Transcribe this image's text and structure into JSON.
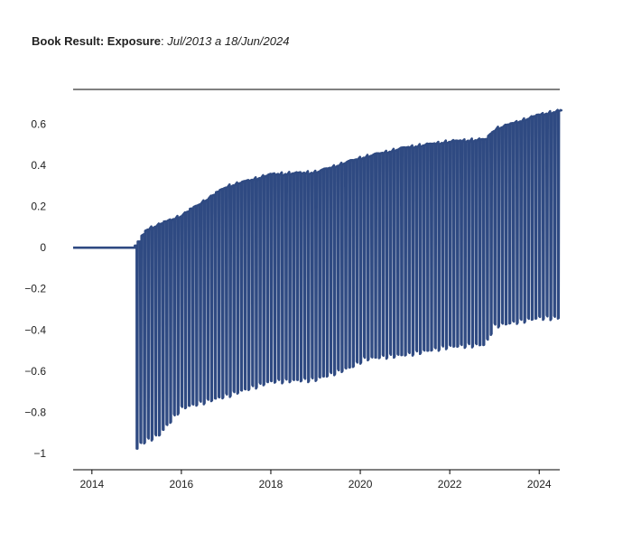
{
  "title": {
    "bold": "Book Result: Exposure",
    "sep": ": ",
    "italic": "Jul/2013 a 18/Jun/2024"
  },
  "colors": {
    "series": "#2f4a82",
    "axis": "#000000",
    "text": "#222222"
  },
  "chart_data": {
    "type": "line",
    "title": "Book Result: Exposure: Jul/2013 a 18/Jun/2024",
    "xlabel": "",
    "ylabel": "",
    "xlim": [
      2013.58,
      2024.46
    ],
    "ylim": [
      -1.08,
      0.77
    ],
    "x_ticks": [
      2014,
      2016,
      2018,
      2020,
      2022,
      2024
    ],
    "x_tick_labels": [
      "2014",
      "2016",
      "2018",
      "2020",
      "2022",
      "2024"
    ],
    "y_ticks": [
      0.6,
      0.4,
      0.2,
      0,
      -0.2,
      -0.4,
      -0.6,
      -0.8,
      -1
    ],
    "y_tick_labels": [
      "0.6",
      "0.4",
      "0.2",
      "0",
      "−0.2",
      "−0.4",
      "−0.6",
      "−0.8",
      "−1"
    ],
    "grid": false,
    "series": [
      {
        "pattern": "flat zero until ~Jan 2015, then monthly oscillation between an upper and lower envelope",
        "upper_envelope": {
          "x": [
            2015.0,
            2015.2,
            2016.0,
            2017.0,
            2018.0,
            2019.0,
            2020.0,
            2021.0,
            2022.0,
            2022.8,
            2023.0,
            2024.0,
            2024.46
          ],
          "y": [
            0.01,
            0.09,
            0.16,
            0.3,
            0.36,
            0.37,
            0.44,
            0.49,
            0.52,
            0.53,
            0.58,
            0.65,
            0.67
          ]
        },
        "lower_envelope": {
          "x": [
            2015.0,
            2015.1,
            2015.5,
            2016.0,
            2017.0,
            2018.0,
            2019.0,
            2019.8,
            2020.1,
            2020.5,
            2021.0,
            2022.0,
            2022.8,
            2023.0,
            2024.0,
            2024.46
          ],
          "y": [
            -0.98,
            -0.95,
            -0.91,
            -0.78,
            -0.72,
            -0.65,
            -0.64,
            -0.58,
            -0.54,
            -0.53,
            -0.52,
            -0.48,
            -0.47,
            -0.38,
            -0.34,
            -0.34
          ]
        }
      }
    ]
  }
}
